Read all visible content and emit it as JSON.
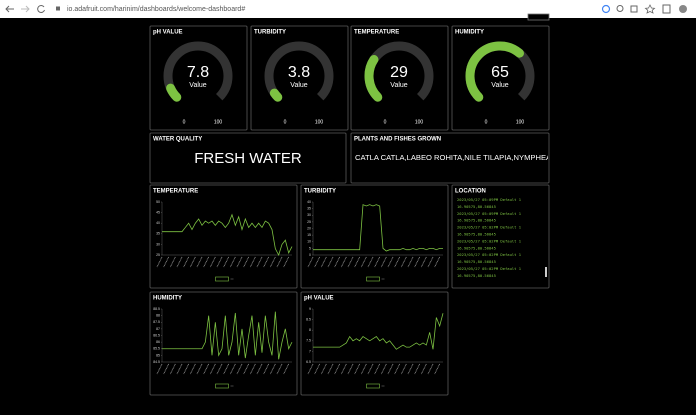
{
  "browser": {
    "url": "io.adafruit.com/harinim/dashboards/welcome-dashboard#"
  },
  "gauges": [
    {
      "title": "pH VALUE",
      "value": 7.8,
      "unit": "Value",
      "min": 0,
      "max": 100
    },
    {
      "title": "TURBIDITY",
      "value": 3.8,
      "unit": "Value",
      "min": 0,
      "max": 100
    },
    {
      "title": "TEMPERATURE",
      "value": 29,
      "unit": "Value",
      "min": 0,
      "max": 100
    },
    {
      "title": "HUMIDITY",
      "value": 65,
      "unit": "Value",
      "min": 0,
      "max": 100
    }
  ],
  "text_blocks": [
    {
      "title": "WATER QUALITY",
      "text": "FRESH WATER"
    },
    {
      "title": "PLANTS AND FISHES GROWN",
      "text": "CATLA CATLA,LABEO ROHITA,NILE TILAPIA,NYMPHEA,PI"
    }
  ],
  "charts": [
    {
      "title": "TEMPERATURE",
      "ylim": [
        25,
        50
      ],
      "yticks": [
        25,
        30,
        35,
        40,
        45,
        50
      ],
      "values": [
        36,
        36,
        36,
        36,
        36,
        36,
        36,
        38,
        40,
        37,
        40,
        42,
        39,
        41,
        40,
        41,
        39,
        41,
        40,
        38,
        40,
        44,
        39,
        43,
        37,
        42,
        38,
        40,
        38,
        40,
        38,
        41,
        40,
        37,
        28,
        25,
        30,
        32,
        26,
        29
      ]
    },
    {
      "title": "TURBIDITY",
      "ylim": [
        0,
        40
      ],
      "yticks": [
        0,
        5,
        10,
        15,
        20,
        25,
        30,
        35,
        40
      ],
      "values": [
        4,
        4,
        4,
        4,
        4,
        4,
        4,
        4,
        4,
        4,
        4,
        4,
        4,
        4,
        4,
        38,
        37,
        38,
        37,
        38,
        37,
        5,
        3,
        4,
        4,
        4,
        4,
        5,
        4,
        4,
        5,
        4,
        5,
        5,
        4,
        5,
        5,
        4,
        5,
        5
      ]
    },
    {
      "title": "HUMIDITY",
      "ylim": [
        84.5,
        88.5
      ],
      "yticks": [
        84.5,
        85,
        85.5,
        86,
        86.5,
        87,
        87.5,
        88,
        88.5
      ],
      "values": [
        85.5,
        85.5,
        85.5,
        85.5,
        85.5,
        85.5,
        85.5,
        85.5,
        85.5,
        85.5,
        85.5,
        85.5,
        85.5,
        86,
        88,
        85,
        87.5,
        85,
        85.5,
        88,
        85,
        86,
        88.2,
        85,
        87,
        84.8,
        86.5,
        88,
        85,
        87.5,
        85.2,
        88,
        86,
        85,
        88.3,
        84.7,
        86,
        87,
        85.5,
        86
      ]
    },
    {
      "title": "pH VALUE",
      "ylim": [
        6.5,
        9
      ],
      "yticks": [
        6.5,
        7,
        7.5,
        8,
        8.5,
        9
      ],
      "values": [
        7.2,
        7.2,
        7.2,
        7.2,
        7.2,
        7.2,
        7.2,
        7.2,
        7.2,
        7.3,
        7.4,
        7.7,
        7.5,
        7.6,
        7.5,
        7.7,
        7.6,
        7.5,
        7.6,
        7.7,
        7.5,
        7.6,
        7.4,
        7.5,
        7.3,
        7.1,
        7.2,
        7.3,
        7.2,
        7.2,
        7.3,
        7.4,
        7.3,
        7.4,
        7.3,
        7.9,
        7.1,
        8.6,
        8.2,
        8.8
      ]
    }
  ],
  "location": {
    "title": "LOCATION",
    "lines": [
      "2023/05/27 05:09PM Default 1",
      "16.90575,80.56845",
      "2023/05/27 05:09PM Default 1",
      "16.90575,80.56845",
      "2023/05/27 05:02PM Default 1",
      "16.90575,80.56845",
      "2023/05/27 05:02PM Default 1",
      "16.90575,80.56845",
      "2023/05/27 05:02PM Default 1",
      "16.90575,80.56845",
      "2023/05/27 05:02PM Default 1",
      "16.90575,80.56845"
    ]
  }
}
